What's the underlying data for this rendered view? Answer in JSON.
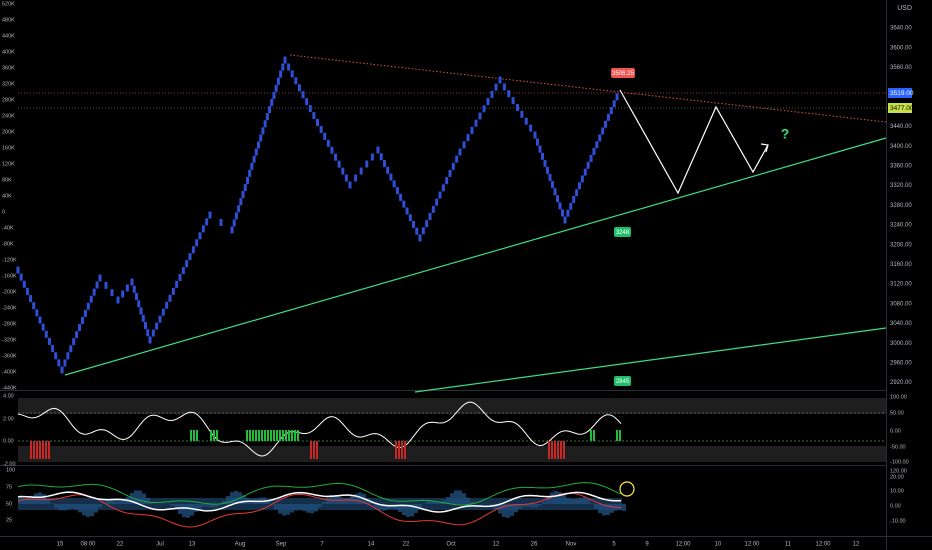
{
  "left_axis": {
    "main": [
      "520K",
      "480K",
      "440K",
      "400K",
      "360K",
      "320K",
      "280K",
      "240K",
      "200K",
      "160K",
      "120K",
      "80K",
      "40K",
      "0",
      "-40K",
      "-80K",
      "-120K",
      "-160K",
      "-200K",
      "-240K",
      "-280K",
      "-320K",
      "-360K",
      "-400K",
      "-440K"
    ],
    "osc1": [
      "4.00",
      "2.00",
      "0.00",
      "-2.00"
    ],
    "osc2": [
      "100",
      "75",
      "50",
      "25"
    ]
  },
  "right_axis": {
    "currency": "USD",
    "main": [
      "3640.00",
      "3600.00",
      "3560.00",
      "3520.00",
      "3480.00",
      "3440.00",
      "3400.00",
      "3360.00",
      "3320.00",
      "3280.00",
      "3240.00",
      "3200.00",
      "3160.00",
      "3120.00",
      "3080.00",
      "3040.00",
      "3000.00",
      "2960.00",
      "2920.00"
    ],
    "last_price": "3519.00",
    "level": "3477.00",
    "osc1": [
      "100.00",
      "50.00",
      "0.00",
      "-50.00",
      "-100.00"
    ],
    "osc2": [
      "120.00",
      "20.00",
      "10.00",
      "0.00",
      "-10.00"
    ]
  },
  "time_axis": [
    "15",
    "08:00",
    "22",
    "Jul",
    "13",
    "Aug",
    "Sep",
    "7",
    "14",
    "22",
    "Oct",
    "12",
    "26",
    "Nov",
    "5",
    "9",
    "12:00",
    "10",
    "12:00",
    "11",
    "12:00",
    "12"
  ],
  "annotations": {
    "high": "3506.25",
    "support": "3248",
    "lower_support": "2845",
    "question": "?"
  }
}
